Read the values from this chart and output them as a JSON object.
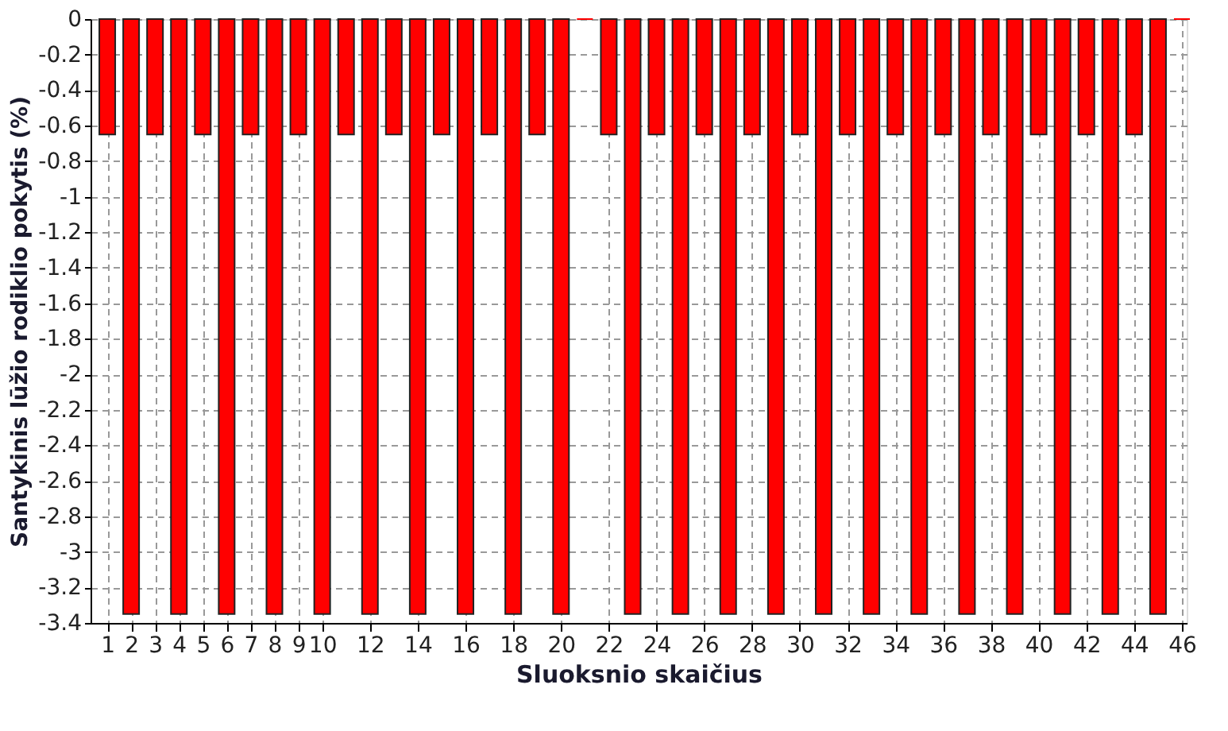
{
  "chart_data": {
    "type": "bar",
    "xlabel": "Sluoksnio skaičius",
    "ylabel": "Santykinis lūžio rodiklio pokytis (%)",
    "x": [
      1,
      2,
      3,
      4,
      5,
      6,
      7,
      8,
      9,
      10,
      11,
      12,
      13,
      14,
      15,
      16,
      17,
      18,
      19,
      20,
      21,
      22,
      23,
      24,
      25,
      26,
      27,
      28,
      29,
      30,
      31,
      32,
      33,
      34,
      35,
      36,
      37,
      38,
      39,
      40,
      41,
      42,
      43,
      44,
      45,
      46
    ],
    "values": [
      -0.65,
      -3.35,
      -0.65,
      -3.35,
      -0.65,
      -3.35,
      -0.65,
      -3.35,
      -0.65,
      -3.35,
      -0.65,
      -3.35,
      -0.65,
      -3.35,
      -0.65,
      -3.35,
      -0.65,
      -3.35,
      -0.65,
      -3.35,
      0,
      -0.65,
      -3.35,
      -0.65,
      -3.35,
      -0.65,
      -3.35,
      -0.65,
      -3.35,
      -0.65,
      -3.35,
      -0.65,
      -3.35,
      -0.65,
      -3.35,
      -0.65,
      -3.35,
      -0.65,
      -3.35,
      -0.65,
      -3.35,
      -0.65,
      -3.35,
      -0.65,
      -3.35,
      0
    ],
    "color": "#ff0000",
    "xlim": [
      0.3,
      46.2
    ],
    "xticks": [
      1,
      2,
      3,
      4,
      5,
      6,
      7,
      8,
      9,
      10,
      12,
      14,
      16,
      18,
      20,
      22,
      24,
      26,
      28,
      30,
      32,
      34,
      36,
      38,
      40,
      42,
      44,
      46
    ],
    "ylim": [
      -3.4,
      0
    ],
    "yticks": [
      0,
      -0.2,
      -0.4,
      -0.6,
      -0.8,
      -1,
      -1.2,
      -1.4,
      -1.6,
      -1.8,
      -2,
      -2.2,
      -2.4,
      -2.6,
      -2.8,
      -3,
      -3.2,
      -3.4
    ],
    "grid": true
  }
}
